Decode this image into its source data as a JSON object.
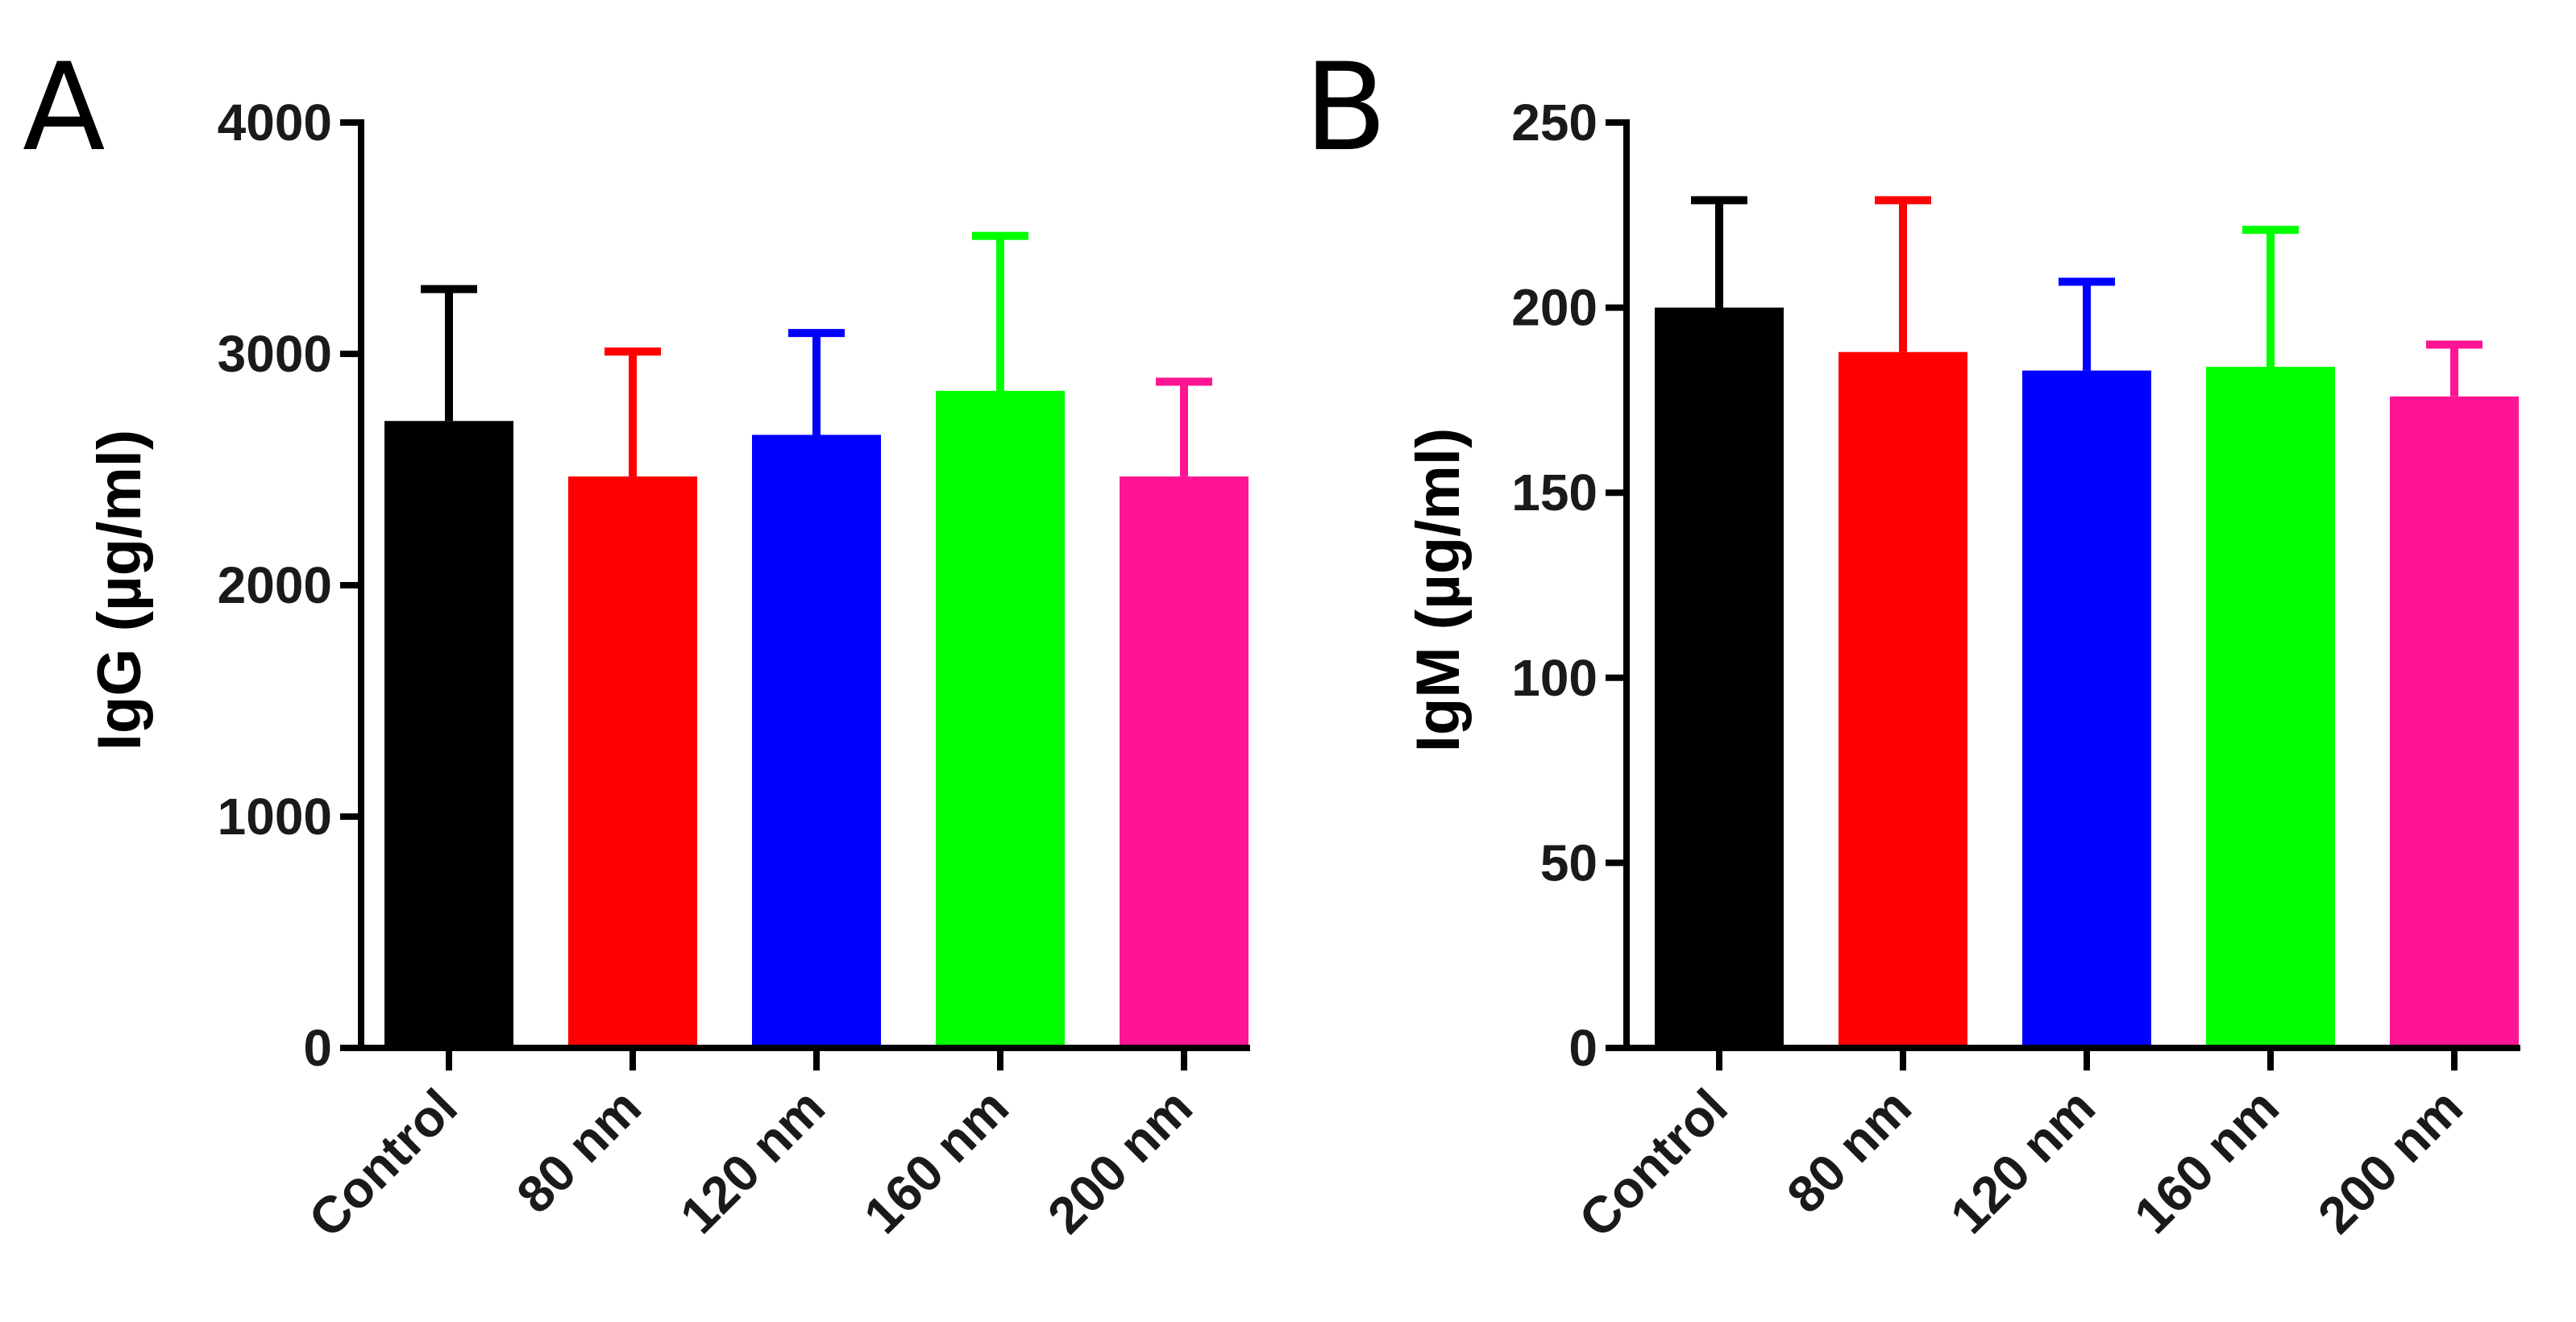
{
  "chart_data": [
    {
      "panel": "A",
      "type": "bar",
      "categories": [
        "Control",
        "80 nm",
        "120 nm",
        "160 nm",
        "200 nm"
      ],
      "values": [
        2710,
        2470,
        2650,
        2840,
        2470
      ],
      "errors": [
        570,
        540,
        440,
        670,
        410
      ],
      "colors": [
        "#000000",
        "#ff0000",
        "#0000ff",
        "#00ff00",
        "#ff1493"
      ],
      "ylabel": "IgG (µg/ml)",
      "ylim": [
        0,
        4000
      ],
      "yticks": [
        0,
        1000,
        2000,
        3000,
        4000
      ],
      "xlabel": "",
      "title": ""
    },
    {
      "panel": "B",
      "type": "bar",
      "categories": [
        "Control",
        "80 nm",
        "120 nm",
        "160 nm",
        "200 nm"
      ],
      "values": [
        200,
        188,
        183,
        184,
        176
      ],
      "errors": [
        29,
        41,
        24,
        37,
        14
      ],
      "colors": [
        "#000000",
        "#ff0000",
        "#0000ff",
        "#00ff00",
        "#ff1493"
      ],
      "ylabel": "IgM (µg/ml)",
      "ylim": [
        0,
        250
      ],
      "yticks": [
        0,
        50,
        100,
        150,
        200,
        250
      ],
      "xlabel": "",
      "title": ""
    }
  ]
}
